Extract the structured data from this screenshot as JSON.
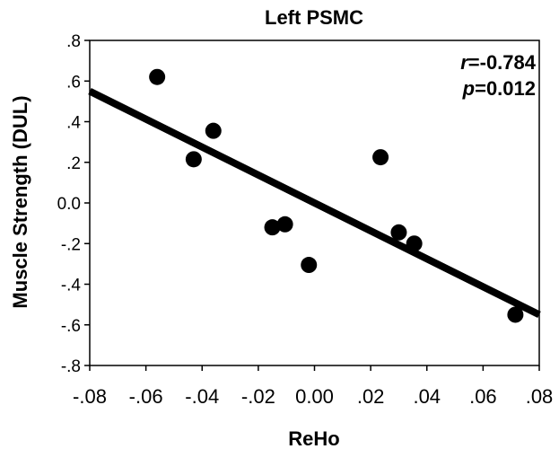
{
  "chart_data": {
    "type": "scatter",
    "title": "Left PSMC",
    "xlabel": "ReHo",
    "ylabel": "Muscle Strength (DUL)",
    "xlim": [
      -0.08,
      0.08
    ],
    "ylim": [
      -0.8,
      0.8
    ],
    "xticks": [
      -0.08,
      -0.06,
      -0.04,
      -0.02,
      0.0,
      0.02,
      0.04,
      0.06,
      0.08
    ],
    "xtick_labels": [
      "-.08",
      "-.06",
      "-.04",
      "-.02",
      "0.00",
      ".02",
      ".04",
      ".06",
      ".08"
    ],
    "yticks": [
      0.8,
      0.6,
      0.4,
      0.2,
      0.0,
      -0.2,
      -0.4,
      -0.6,
      -0.8
    ],
    "ytick_labels": [
      ".8",
      ".6",
      ".4",
      ".2",
      "0.0",
      "-.2",
      "-.4",
      "-.6",
      "-.8"
    ],
    "points": [
      {
        "x": -0.056,
        "y": 0.62
      },
      {
        "x": -0.043,
        "y": 0.215
      },
      {
        "x": -0.036,
        "y": 0.355
      },
      {
        "x": -0.015,
        "y": -0.12
      },
      {
        "x": -0.0105,
        "y": -0.105
      },
      {
        "x": -0.002,
        "y": -0.305
      },
      {
        "x": 0.0235,
        "y": 0.225
      },
      {
        "x": 0.03,
        "y": -0.145
      },
      {
        "x": 0.0355,
        "y": -0.2
      },
      {
        "x": 0.0715,
        "y": -0.55
      }
    ],
    "fit_line": {
      "x": [
        -0.08,
        0.08
      ],
      "y": [
        0.55,
        -0.55
      ]
    },
    "annotation": {
      "r_symbol": "r",
      "r_value": "=-0.784",
      "p_symbol": "p",
      "p_value": "=0.012"
    },
    "grid": false,
    "colors": {
      "marker": "#000000",
      "line": "#000000"
    }
  }
}
